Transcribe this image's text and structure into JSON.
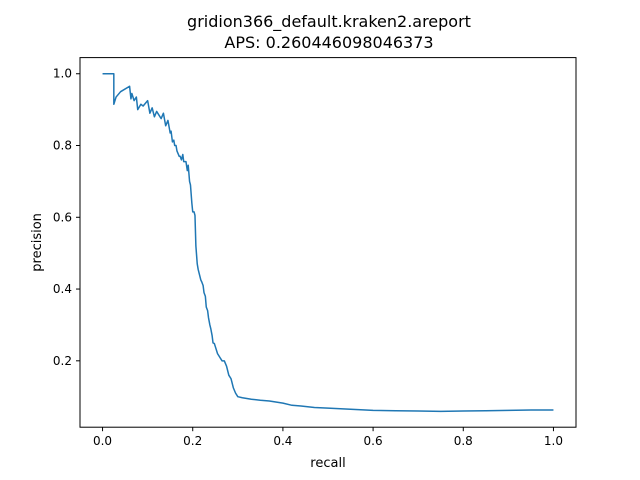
{
  "chart_data": {
    "type": "line",
    "title": "gridion366_default.kraken2.areport",
    "subtitle": "APS: 0.260446098046373",
    "xlabel": "recall",
    "ylabel": "precision",
    "xlim": [
      -0.05,
      1.05
    ],
    "ylim": [
      0.015,
      1.045
    ],
    "grid": false,
    "legend": "none",
    "x_ticks": [
      "0.0",
      "0.2",
      "0.4",
      "0.6",
      "0.8",
      "1.0"
    ],
    "y_ticks": [
      "0.2",
      "0.4",
      "0.6",
      "0.8",
      "1.0"
    ],
    "line_color": "#1f77b4",
    "series": [
      {
        "x": [
          0.0,
          0.025,
          0.025,
          0.03,
          0.04,
          0.06,
          0.063,
          0.065,
          0.07,
          0.075,
          0.078,
          0.085,
          0.09,
          0.1,
          0.105,
          0.11,
          0.115,
          0.12,
          0.13,
          0.135,
          0.14,
          0.145,
          0.15,
          0.152,
          0.155,
          0.158,
          0.16,
          0.163,
          0.165,
          0.17,
          0.172,
          0.175,
          0.178,
          0.18,
          0.185,
          0.188,
          0.19,
          0.193,
          0.195,
          0.198,
          0.2,
          0.203,
          0.205,
          0.207,
          0.21,
          0.212,
          0.215,
          0.218,
          0.22,
          0.223,
          0.225,
          0.228,
          0.23,
          0.233,
          0.235,
          0.238,
          0.24,
          0.243,
          0.245,
          0.248,
          0.25,
          0.255,
          0.26,
          0.265,
          0.27,
          0.275,
          0.28,
          0.285,
          0.29,
          0.295,
          0.3,
          0.31,
          0.32,
          0.33,
          0.35,
          0.37,
          0.4,
          0.42,
          0.44,
          0.47,
          0.5,
          0.55,
          0.6,
          0.65,
          0.7,
          0.75,
          0.8,
          0.85,
          0.9,
          0.95,
          1.0
        ],
        "y": [
          1.0,
          1.0,
          0.915,
          0.935,
          0.95,
          0.965,
          0.93,
          0.945,
          0.925,
          0.935,
          0.9,
          0.915,
          0.91,
          0.925,
          0.89,
          0.905,
          0.88,
          0.895,
          0.875,
          0.89,
          0.855,
          0.87,
          0.835,
          0.84,
          0.81,
          0.815,
          0.8,
          0.8,
          0.785,
          0.77,
          0.77,
          0.76,
          0.775,
          0.755,
          0.755,
          0.73,
          0.745,
          0.7,
          0.69,
          0.64,
          0.615,
          0.615,
          0.605,
          0.52,
          0.47,
          0.455,
          0.44,
          0.425,
          0.42,
          0.41,
          0.39,
          0.38,
          0.35,
          0.34,
          0.32,
          0.3,
          0.29,
          0.27,
          0.25,
          0.248,
          0.24,
          0.22,
          0.21,
          0.2,
          0.2,
          0.185,
          0.16,
          0.15,
          0.125,
          0.11,
          0.1,
          0.097,
          0.095,
          0.093,
          0.09,
          0.088,
          0.082,
          0.076,
          0.074,
          0.07,
          0.068,
          0.065,
          0.062,
          0.061,
          0.06,
          0.059,
          0.06,
          0.061,
          0.062,
          0.063,
          0.063
        ]
      }
    ]
  }
}
